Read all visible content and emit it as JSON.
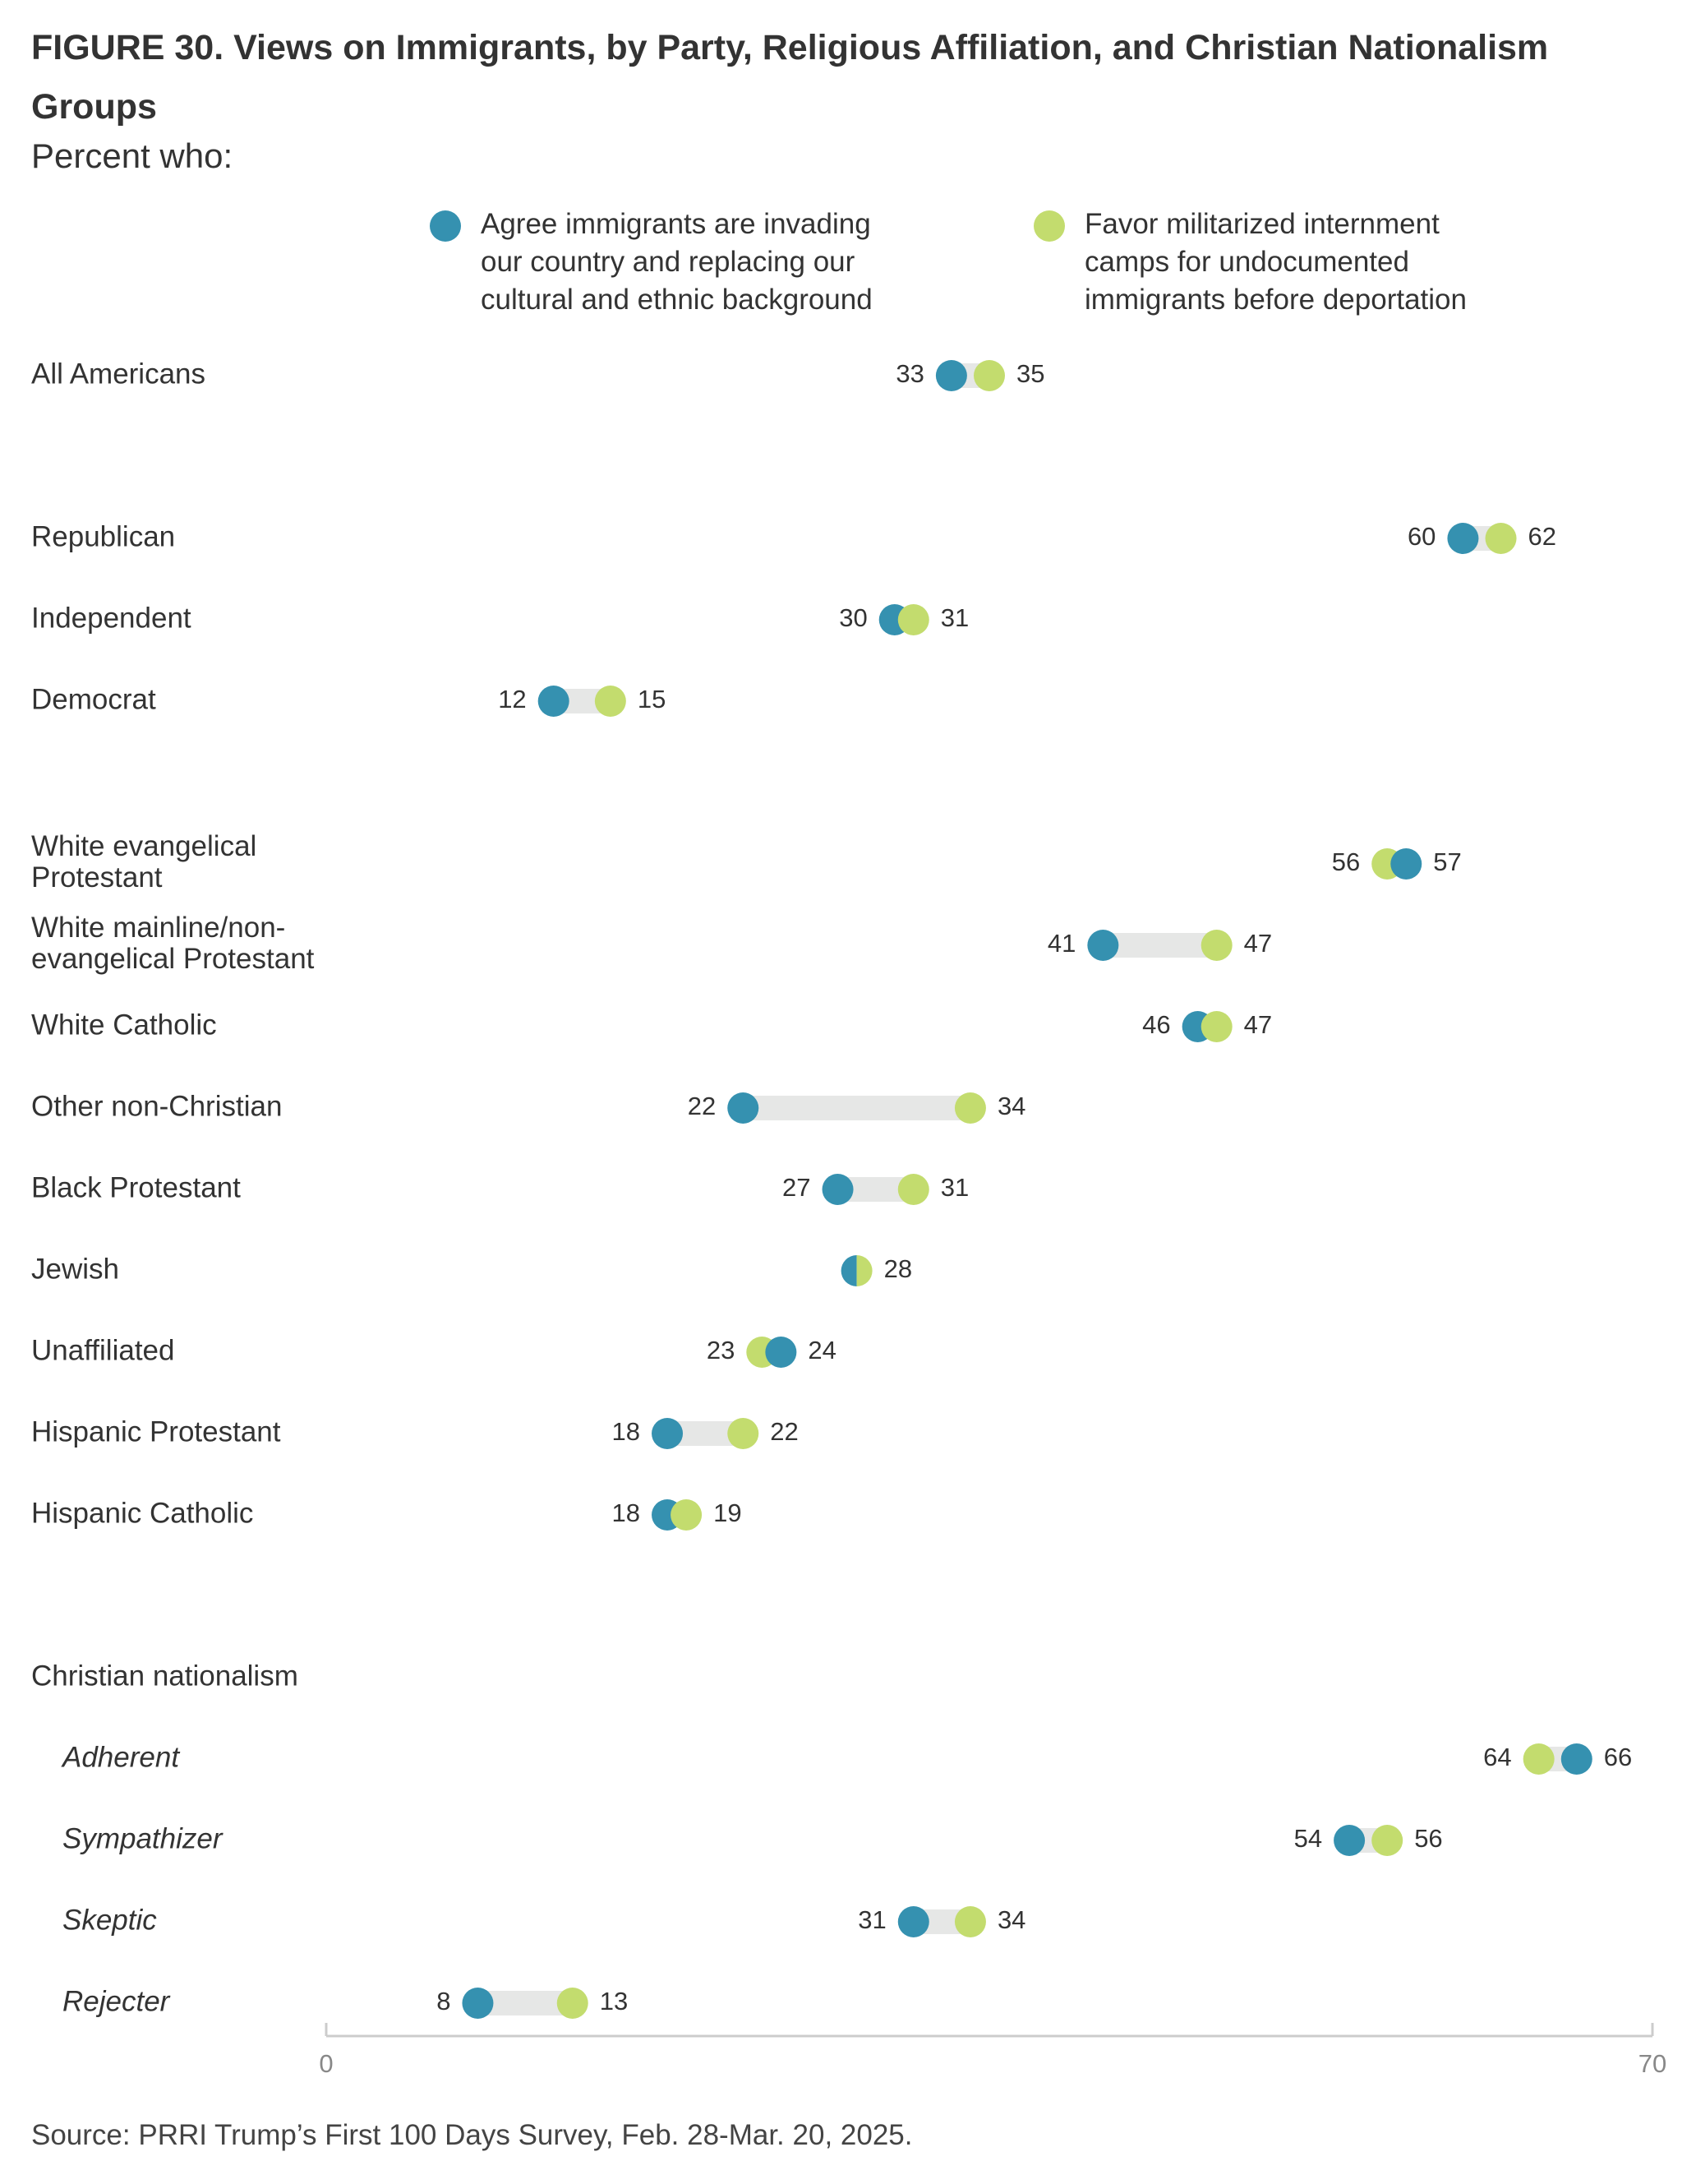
{
  "figure": {
    "title": "FIGURE 30.  Views on Immigrants, by Party, Religious Affiliation, and Christian Nationalism Groups",
    "subtitle": "Percent who:",
    "source": "Source: PRRI Trump’s First 100 Days Survey, Feb. 28-Mar. 20, 2025."
  },
  "legend": [
    {
      "label": "Agree immigrants are invading\nour country and replacing our\ncultural and ethnic background",
      "color": "#3591b0"
    },
    {
      "label": "Favor militarized internment\ncamps for undocumented\nimmigrants before deportation",
      "color": "#c3dc6e"
    }
  ],
  "chart_data": {
    "type": "dumbbell",
    "xlim": [
      0,
      70
    ],
    "x_ticks": [
      "0",
      "70"
    ],
    "series": [
      {
        "name": "Agree immigrants are invading our country and replacing our cultural and ethnic background",
        "color": "#3591b0"
      },
      {
        "name": "Favor militarized internment camps for undocumented immigrants before deportation",
        "color": "#c3dc6e"
      }
    ],
    "group_headers": [
      {
        "label": "Christian nationalism",
        "before_row": 14
      }
    ],
    "rows": [
      {
        "label": "All Americans",
        "values": [
          33,
          35
        ],
        "value_labels": [
          "33",
          "35"
        ]
      },
      {
        "label": "Republican",
        "values": [
          60,
          62
        ],
        "value_labels": [
          "60",
          "62"
        ]
      },
      {
        "label": "Independent",
        "values": [
          30,
          31
        ],
        "value_labels": [
          "30",
          "31"
        ]
      },
      {
        "label": "Democrat",
        "values": [
          12,
          15
        ],
        "value_labels": [
          "12",
          "15"
        ]
      },
      {
        "label": "White evangelical\nProtestant",
        "values": [
          57,
          56
        ],
        "value_labels": [
          "57",
          "56"
        ]
      },
      {
        "label": "White mainline/non-\nevangelical Protestant",
        "values": [
          41,
          47
        ],
        "value_labels": [
          "41",
          "47"
        ]
      },
      {
        "label": "White Catholic",
        "values": [
          46,
          47
        ],
        "value_labels": [
          "46",
          "47"
        ]
      },
      {
        "label": "Other non-Christian",
        "values": [
          22,
          34
        ],
        "value_labels": [
          "22",
          "34"
        ]
      },
      {
        "label": "Black Protestant",
        "values": [
          27,
          31
        ],
        "value_labels": [
          "27",
          "31"
        ]
      },
      {
        "label": "Jewish",
        "values": [
          28,
          28
        ],
        "value_labels": [
          "",
          "28"
        ]
      },
      {
        "label": "Unaffiliated",
        "values": [
          24,
          23
        ],
        "value_labels": [
          "24",
          "23"
        ]
      },
      {
        "label": "Hispanic Protestant",
        "values": [
          18,
          22
        ],
        "value_labels": [
          "18",
          "22"
        ]
      },
      {
        "label": "Hispanic Catholic",
        "values": [
          18,
          19
        ],
        "value_labels": [
          "18",
          "19"
        ]
      },
      {
        "label": "Adherent",
        "values": [
          66,
          64
        ],
        "value_labels": [
          "66",
          "64"
        ],
        "italic": true
      },
      {
        "label": "Sympathizer",
        "values": [
          54,
          56
        ],
        "value_labels": [
          "54",
          "56"
        ],
        "italic": true
      },
      {
        "label": "Skeptic",
        "values": [
          31,
          34
        ],
        "value_labels": [
          "31",
          "34"
        ],
        "italic": true
      },
      {
        "label": "Rejecter",
        "values": [
          8,
          13
        ],
        "value_labels": [
          "8",
          "13"
        ],
        "italic": true
      }
    ]
  }
}
